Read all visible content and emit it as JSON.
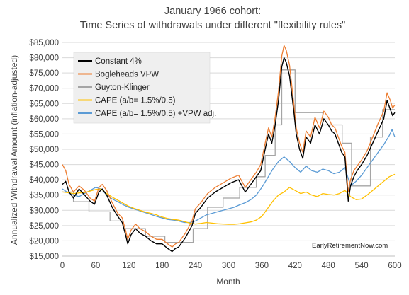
{
  "chart_data": {
    "type": "line",
    "title_line1": "January 1966 cohort:",
    "title_line2": "Time Series of withdrawals under different \"flexibility rules\"",
    "xlabel": "Month",
    "ylabel": "Annualized Withdrawal Amount (inflation-adjusted)",
    "xlim": [
      0,
      600
    ],
    "ylim": [
      15000,
      85000
    ],
    "x_ticks": [
      0,
      60,
      120,
      180,
      240,
      300,
      360,
      420,
      480,
      540,
      600
    ],
    "x_tick_labels": [
      "0",
      "60",
      "120",
      "180",
      "240",
      "300",
      "360",
      "420",
      "480",
      "540",
      "600"
    ],
    "y_ticks": [
      15000,
      20000,
      25000,
      30000,
      35000,
      40000,
      45000,
      50000,
      55000,
      60000,
      65000,
      70000,
      75000,
      80000,
      85000
    ],
    "y_tick_labels": [
      "$15,000",
      "$20,000",
      "$25,000",
      "$30,000",
      "$35,000",
      "$40,000",
      "$45,000",
      "$50,000",
      "$55,000",
      "$60,000",
      "$65,000",
      "$70,000",
      "$75,000",
      "$80,000",
      "$85,000"
    ],
    "grid": "horizontal",
    "legend_position": "top-left",
    "credit": "EarlyRetirementNow.com",
    "series": [
      {
        "name": "Constant 4%",
        "color": "#000000",
        "x": [
          0,
          6,
          12,
          20,
          30,
          40,
          50,
          58,
          66,
          72,
          80,
          90,
          100,
          108,
          114,
          118,
          124,
          132,
          140,
          150,
          160,
          170,
          180,
          190,
          198,
          204,
          210,
          216,
          222,
          228,
          234,
          240,
          250,
          262,
          276,
          290,
          304,
          318,
          330,
          340,
          350,
          358,
          366,
          372,
          378,
          384,
          390,
          396,
          400,
          404,
          410,
          414,
          418,
          422,
          428,
          434,
          440,
          448,
          456,
          464,
          472,
          480,
          486,
          492,
          498,
          504,
          510,
          516,
          520,
          526,
          532,
          540,
          550,
          560,
          570,
          580,
          586,
          592,
          596,
          600
        ],
        "values": [
          38500,
          39500,
          36000,
          34000,
          37000,
          35000,
          33000,
          32000,
          36000,
          37000,
          35000,
          31000,
          28000,
          26000,
          22000,
          19000,
          22000,
          24000,
          22500,
          21500,
          20000,
          19000,
          19000,
          17500,
          16500,
          17500,
          18000,
          19500,
          21000,
          23000,
          25000,
          29000,
          31000,
          34000,
          36000,
          37500,
          39000,
          40000,
          36000,
          38500,
          41000,
          43000,
          50000,
          55000,
          52000,
          58000,
          66000,
          77000,
          80000,
          78500,
          74000,
          68000,
          62000,
          55000,
          50000,
          47000,
          54000,
          52000,
          58000,
          55000,
          60000,
          58000,
          56000,
          55000,
          52000,
          49000,
          47500,
          33000,
          38000,
          41000,
          43000,
          45000,
          48000,
          52000,
          56000,
          60000,
          66000,
          63000,
          61000,
          62000
        ]
      },
      {
        "name": "Bogleheads VPW",
        "color": "#ED7D31",
        "x": [
          0,
          6,
          12,
          20,
          30,
          40,
          50,
          58,
          66,
          72,
          80,
          90,
          100,
          108,
          114,
          118,
          124,
          132,
          140,
          150,
          160,
          170,
          180,
          190,
          198,
          204,
          210,
          216,
          222,
          228,
          234,
          240,
          250,
          262,
          276,
          290,
          304,
          318,
          330,
          340,
          350,
          358,
          366,
          372,
          378,
          384,
          390,
          396,
          400,
          404,
          410,
          414,
          418,
          422,
          428,
          434,
          440,
          448,
          456,
          464,
          472,
          480,
          486,
          492,
          498,
          504,
          510,
          516,
          520,
          526,
          532,
          540,
          550,
          560,
          570,
          580,
          586,
          592,
          596,
          600
        ],
        "values": [
          45000,
          43000,
          38500,
          36000,
          38000,
          36500,
          34000,
          33000,
          37500,
          38500,
          36500,
          32500,
          29000,
          27500,
          23500,
          20500,
          23500,
          25500,
          24000,
          23000,
          21500,
          20500,
          20500,
          19000,
          18000,
          19000,
          19500,
          21000,
          22500,
          24500,
          26500,
          30500,
          32500,
          35500,
          37500,
          39000,
          40500,
          41500,
          37500,
          40000,
          42500,
          45000,
          52000,
          57000,
          54000,
          60500,
          69000,
          80500,
          84000,
          82500,
          77500,
          71000,
          64500,
          57000,
          52000,
          49000,
          56000,
          54000,
          60500,
          57000,
          62500,
          60500,
          58000,
          57000,
          54000,
          51000,
          49000,
          36000,
          40000,
          43000,
          44500,
          46500,
          49500,
          54000,
          58500,
          62500,
          68500,
          66000,
          63500,
          64500
        ]
      },
      {
        "name": "Guyton-Klinger",
        "color": "#A5A5A5",
        "x": [
          0,
          20,
          20,
          48,
          48,
          86,
          86,
          110,
          110,
          150,
          150,
          185,
          185,
          236,
          236,
          262,
          262,
          290,
          290,
          320,
          320,
          350,
          350,
          366,
          366,
          384,
          384,
          396,
          396,
          420,
          420,
          470,
          470,
          505,
          505,
          522,
          522,
          556,
          556,
          578,
          578,
          600
        ],
        "values": [
          36000,
          36000,
          32800,
          32800,
          29500,
          29500,
          26500,
          26500,
          24000,
          24000,
          21500,
          21500,
          19500,
          19500,
          24000,
          24000,
          31000,
          31000,
          34000,
          34000,
          37500,
          37500,
          41000,
          41000,
          48000,
          48000,
          58000,
          58000,
          76000,
          76000,
          62000,
          62000,
          58000,
          58000,
          52000,
          52000,
          38000,
          38000,
          54000,
          54000,
          63000,
          63000
        ]
      },
      {
        "name": "CAPE (a/b= 1.5%/0.5)",
        "color": "#FFC000",
        "x": [
          0,
          10,
          20,
          30,
          40,
          50,
          60,
          70,
          80,
          90,
          100,
          110,
          120,
          130,
          140,
          150,
          160,
          170,
          180,
          190,
          200,
          210,
          220,
          230,
          240,
          250,
          260,
          270,
          280,
          290,
          300,
          310,
          320,
          330,
          340,
          350,
          360,
          370,
          380,
          390,
          400,
          410,
          420,
          430,
          440,
          450,
          460,
          470,
          480,
          490,
          500,
          510,
          520,
          530,
          540,
          550,
          560,
          570,
          580,
          590,
          600
        ],
        "values": [
          36000,
          35800,
          35500,
          35700,
          35800,
          36300,
          36800,
          37000,
          35500,
          34300,
          33300,
          32300,
          31300,
          30600,
          30000,
          29400,
          29000,
          28500,
          27800,
          27300,
          27000,
          26800,
          26300,
          25800,
          25500,
          25700,
          26000,
          25800,
          25600,
          25500,
          25400,
          25400,
          25600,
          25900,
          26200,
          26800,
          28000,
          30500,
          33000,
          35000,
          36000,
          37500,
          36500,
          35500,
          36000,
          35000,
          34500,
          35500,
          35200,
          35000,
          35500,
          36500,
          34500,
          33500,
          33700,
          35000,
          36500,
          38000,
          39500,
          41000,
          41800
        ]
      },
      {
        "name": "CAPE (a/b= 1.5%/0.5) +VPW adj.",
        "color": "#5B9BD5",
        "x": [
          0,
          10,
          20,
          30,
          40,
          50,
          60,
          70,
          80,
          90,
          100,
          110,
          120,
          130,
          140,
          150,
          160,
          170,
          180,
          190,
          200,
          210,
          220,
          230,
          240,
          250,
          260,
          270,
          280,
          290,
          300,
          310,
          320,
          330,
          340,
          350,
          360,
          370,
          380,
          390,
          400,
          410,
          420,
          430,
          440,
          450,
          460,
          470,
          480,
          490,
          500,
          510,
          520,
          530,
          540,
          550,
          560,
          570,
          580,
          590,
          595,
          600
        ],
        "values": [
          37000,
          35800,
          35000,
          34500,
          35500,
          36500,
          37500,
          37000,
          35000,
          33700,
          32800,
          31800,
          31000,
          30400,
          29800,
          29200,
          28600,
          28000,
          27500,
          27000,
          26800,
          26500,
          26000,
          26000,
          26500,
          27500,
          28500,
          29000,
          29500,
          30000,
          30500,
          31000,
          31800,
          32500,
          33500,
          35000,
          37500,
          40500,
          43500,
          46000,
          47500,
          46000,
          44000,
          42500,
          44500,
          43000,
          42500,
          43500,
          43000,
          42000,
          42500,
          44000,
          38000,
          39500,
          41500,
          44000,
          46500,
          49000,
          51500,
          54500,
          56500,
          54000
        ]
      }
    ]
  }
}
